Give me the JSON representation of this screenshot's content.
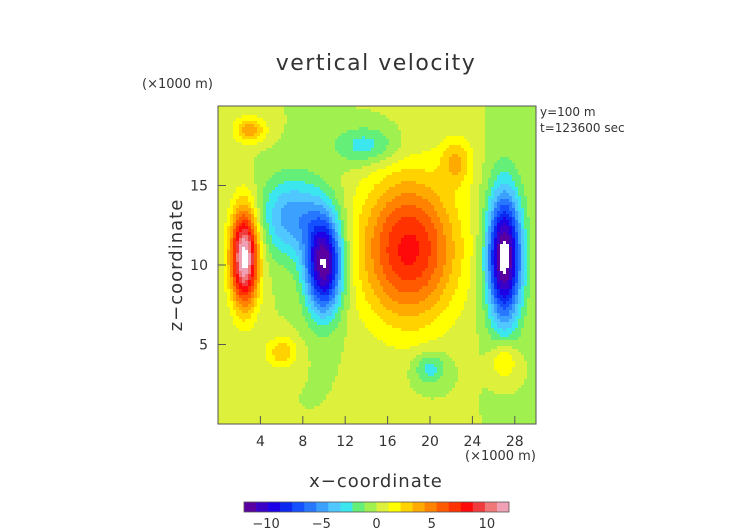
{
  "chart_data": {
    "type": "heatmap",
    "title": "vertical velocity",
    "xlabel": "x−coordinate",
    "ylabel": "z−coordinate",
    "x_unit": "(×1000 m)",
    "y_unit": "(×1000 m)",
    "info_lines": [
      "y=100 m",
      "t=123600 sec"
    ],
    "xlim": [
      0,
      30
    ],
    "ylim": [
      0,
      20
    ],
    "x_ticks": [
      4,
      8,
      12,
      16,
      20,
      24,
      28
    ],
    "y_ticks": [
      5,
      10,
      15
    ],
    "colorbar": {
      "range": [
        -12,
        12
      ],
      "ticks": [
        -10,
        -5,
        0,
        5,
        10
      ],
      "colors": [
        "#5a00a0",
        "#3a00c8",
        "#1e00e6",
        "#0a28f0",
        "#1450ff",
        "#2878ff",
        "#3ca0ff",
        "#50c8ff",
        "#3ce6ee",
        "#64f078",
        "#a0f050",
        "#dcf03c",
        "#ffff00",
        "#ffd200",
        "#ffaa00",
        "#ff8200",
        "#ff5a00",
        "#ff3200",
        "#ff0a0a",
        "#f03c3c",
        "#f07878",
        "#f0a0b4"
      ]
    },
    "features": [
      {
        "label": "updraft",
        "x": 2.5,
        "z": 10.5,
        "sx": 1.3,
        "sz": 3.0,
        "value": 13
      },
      {
        "label": "downdraft",
        "x": 10.0,
        "z": 10.0,
        "sx": 1.7,
        "sz": 3.0,
        "value": -12
      },
      {
        "label": "updraft",
        "x": 18.0,
        "z": 11.0,
        "sx": 4.5,
        "sz": 4.5,
        "value": 8
      },
      {
        "label": "downdraft",
        "x": 27.0,
        "z": 10.5,
        "sx": 1.6,
        "sz": 4.0,
        "value": -13
      },
      {
        "label": "downdraft",
        "x": 7.0,
        "z": 13.0,
        "sx": 3.0,
        "sz": 2.5,
        "value": -5
      },
      {
        "label": "updraft",
        "x": 3.0,
        "z": 18.5,
        "sx": 1.5,
        "sz": 0.8,
        "value": 4
      },
      {
        "label": "downdraft",
        "x": 14.0,
        "z": 17.5,
        "sx": 3.0,
        "sz": 1.2,
        "value": -3
      },
      {
        "label": "updraft",
        "x": 6.0,
        "z": 4.5,
        "sx": 1.5,
        "sz": 1.0,
        "value": 3
      },
      {
        "label": "downdraft",
        "x": 20.0,
        "z": 3.5,
        "sx": 1.5,
        "sz": 1.0,
        "value": -3
      },
      {
        "label": "updraft",
        "x": 27.0,
        "z": 4.0,
        "sx": 1.2,
        "sz": 1.2,
        "value": 3
      },
      {
        "label": "updraft",
        "x": 22.5,
        "z": 16.5,
        "sx": 1.5,
        "sz": 1.5,
        "value": 3
      }
    ]
  }
}
